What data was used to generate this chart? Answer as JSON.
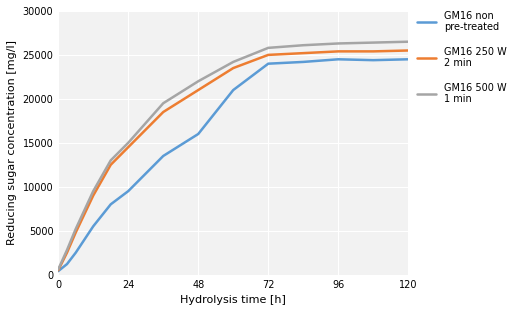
{
  "title": "",
  "xlabel": "Hydrolysis time [h]",
  "ylabel": "Reducing sugar concentration [mg/l]",
  "xlim": [
    0,
    120
  ],
  "ylim": [
    0,
    30000
  ],
  "xticks": [
    0,
    24,
    48,
    72,
    96,
    120
  ],
  "yticks": [
    0,
    5000,
    10000,
    15000,
    20000,
    25000,
    30000
  ],
  "ytick_labels": [
    "0",
    "5000",
    "10000",
    "15000",
    "20000",
    "25000",
    "30000"
  ],
  "series": [
    {
      "label": "GM16 non\npre-treated",
      "color": "#5B9BD5",
      "linewidth": 1.8,
      "x": [
        0,
        3,
        6,
        12,
        18,
        24,
        36,
        48,
        60,
        72,
        84,
        96,
        108,
        120
      ],
      "y": [
        400,
        1200,
        2500,
        5500,
        8000,
        9500,
        13500,
        16000,
        21000,
        24000,
        24200,
        24500,
        24400,
        24500
      ]
    },
    {
      "label": "GM16 250 W\n2 min",
      "color": "#ED7D31",
      "linewidth": 1.8,
      "x": [
        0,
        3,
        6,
        12,
        18,
        24,
        36,
        48,
        60,
        72,
        84,
        96,
        108,
        120
      ],
      "y": [
        500,
        2500,
        4800,
        9000,
        12500,
        14500,
        18500,
        21000,
        23500,
        25000,
        25200,
        25400,
        25400,
        25500
      ]
    },
    {
      "label": "GM16 500 W\n1 min",
      "color": "#A5A5A5",
      "linewidth": 1.8,
      "x": [
        0,
        3,
        6,
        12,
        18,
        24,
        36,
        48,
        60,
        72,
        84,
        96,
        108,
        120
      ],
      "y": [
        600,
        2800,
        5200,
        9500,
        13000,
        15000,
        19500,
        22000,
        24200,
        25800,
        26100,
        26300,
        26400,
        26500
      ]
    }
  ],
  "background_color": "#ffffff",
  "plot_bg_color": "#f2f2f2",
  "grid_color": "#ffffff",
  "legend_fontsize": 7,
  "axis_label_fontsize": 8,
  "tick_fontsize": 7,
  "legend_labelspacing": 1.5,
  "legend_handlelength": 2.0
}
